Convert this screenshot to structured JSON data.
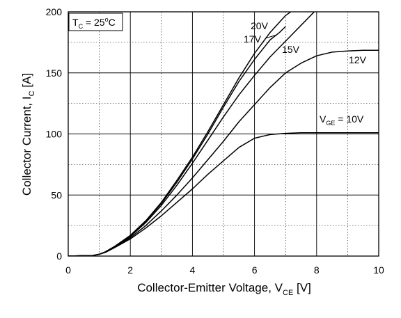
{
  "chart_data": {
    "type": "line",
    "xlabel": "Collector-Emitter Voltage, V",
    "xlabel_sub": "CE",
    "xlabel_unit": " [V]",
    "ylabel": "Collector Current, I",
    "ylabel_sub": "C",
    "ylabel_unit": " [A]",
    "xlim": [
      0,
      10
    ],
    "ylim": [
      0,
      200
    ],
    "xticks": [
      0,
      2,
      4,
      6,
      8,
      10
    ],
    "yticks": [
      0,
      50,
      100,
      150,
      200
    ],
    "minor_grid": true,
    "grid": true,
    "condition_box": {
      "prefix": "T",
      "sub": "C",
      "mid": " = 25",
      "sup": "o",
      "suffix": "C"
    },
    "series": [
      {
        "name": "20V",
        "x": [
          0,
          0.8,
          1.0,
          1.2,
          1.5,
          2.0,
          2.5,
          3.0,
          3.5,
          4.0,
          4.5,
          5.0,
          5.5,
          6.0,
          6.5,
          7.0,
          7.5
        ],
        "y": [
          0,
          0.5,
          1.5,
          3.5,
          8,
          17,
          29,
          44,
          62,
          81,
          102,
          124,
          146,
          166,
          183,
          197,
          206
        ]
      },
      {
        "name": "17V",
        "x": [
          0,
          0.8,
          1.0,
          1.2,
          1.5,
          2.0,
          2.5,
          3.0,
          3.5,
          4.0,
          4.5,
          5.0,
          5.5,
          6.0,
          6.5,
          6.8,
          7.0
        ],
        "y": [
          0,
          0.5,
          1.5,
          3.5,
          8,
          16.5,
          28.5,
          43,
          60.5,
          79.5,
          100,
          122,
          143,
          161,
          177,
          183,
          188
        ]
      },
      {
        "name": "15V",
        "x": [
          0,
          0.8,
          1.0,
          1.2,
          1.5,
          2.0,
          2.5,
          3.0,
          3.5,
          4.0,
          4.5,
          5.0,
          5.5,
          6.0,
          6.5,
          7.0,
          7.5,
          8.0
        ],
        "y": [
          0,
          0.5,
          1.5,
          3.5,
          8,
          16,
          27.5,
          41.5,
          58,
          76,
          95,
          114,
          132,
          148,
          163,
          176,
          189,
          202
        ]
      },
      {
        "name": "12V",
        "x": [
          0,
          0.8,
          1.0,
          1.2,
          1.5,
          2.0,
          2.5,
          3.0,
          3.5,
          4.0,
          4.5,
          5.0,
          5.5,
          6.0,
          6.5,
          7.0,
          7.5,
          8.0,
          8.5,
          9.0,
          9.5,
          10.0
        ],
        "y": [
          0,
          0.5,
          1.5,
          3.5,
          7.5,
          15,
          25,
          37,
          50,
          64,
          79,
          94,
          110,
          124,
          138,
          150,
          158,
          164,
          167,
          168,
          168.5,
          168.5
        ]
      },
      {
        "name": "VGE = 10V",
        "label_prefix": "V",
        "label_sub": "GE",
        "label_suffix": " = 10V",
        "x": [
          0,
          0.8,
          1.0,
          1.2,
          1.5,
          2.0,
          2.5,
          3.0,
          3.5,
          4.0,
          4.5,
          5.0,
          5.5,
          6.0,
          6.5,
          7.0,
          7.5,
          8.0,
          9.0,
          10.0
        ],
        "y": [
          0,
          0.5,
          1.5,
          3,
          7,
          14,
          23,
          33,
          44,
          55,
          67,
          78,
          89,
          96.5,
          99.5,
          100.5,
          101,
          101,
          101,
          101
        ]
      }
    ]
  }
}
